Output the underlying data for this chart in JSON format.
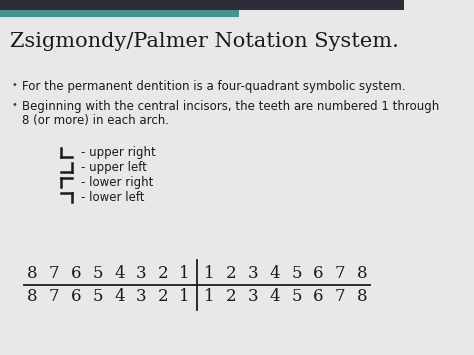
{
  "title": "Zsigmondy/Palmer Notation System.",
  "bg_color": "#e8e8e8",
  "header_bar1_color": "#2d2d3a",
  "header_bar2_color": "#4a9090",
  "bullet1": "For the permanent dentition is a four-quadrant symbolic system.",
  "bullet2_line1": "Beginning with the central incisors, the teeth are numbered 1 through",
  "bullet2_line2": "8 (or more) in each arch.",
  "quadrant_items": [
    "- upper right",
    "- upper left",
    "- lower right",
    "- lower left"
  ],
  "font_color": "#1a1a1a",
  "title_fontsize": 15,
  "body_fontsize": 8.5,
  "tooth_fontsize": 12
}
